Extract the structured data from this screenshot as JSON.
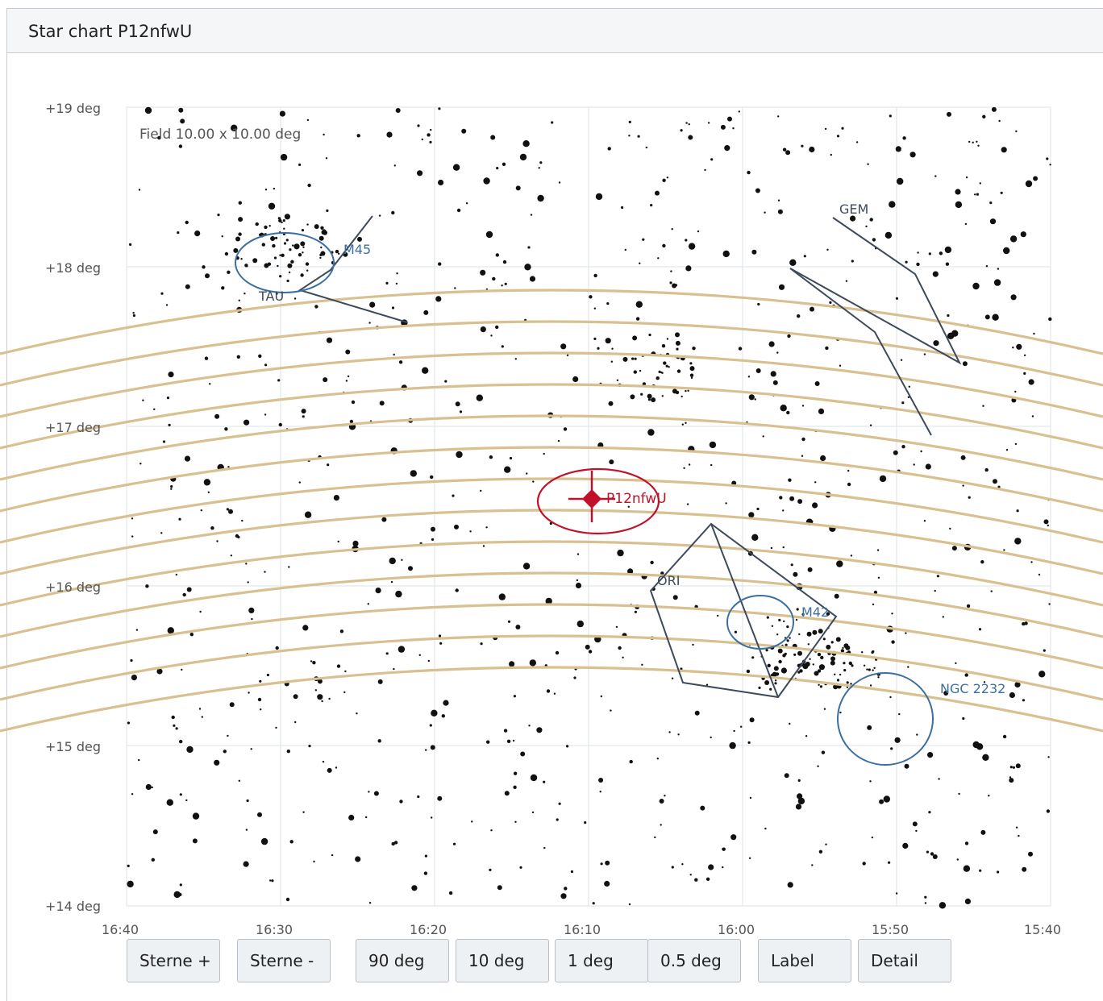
{
  "window": {
    "title": "Star chart P12nfwU"
  },
  "chart": {
    "field_label": "Field 10.00 x 10.00 deg",
    "y_ticks": [
      "+19 deg",
      "+18 deg",
      "+17 deg",
      "+16 deg",
      "+15 deg",
      "+14 deg"
    ],
    "x_ticks": [
      "16:40",
      "16:30",
      "16:20",
      "16:10",
      "16:00",
      "15:50",
      "15:40"
    ],
    "target_label": "P12nfwU",
    "cluster_labels": [
      "M45",
      "M42",
      "NGC 2232"
    ],
    "constellation_labels": [
      "TAU",
      "GEM",
      "ORI"
    ],
    "colors": {
      "grid": "#dde3ea",
      "axis_text": "#555555",
      "star": "#111111",
      "track": "#d9c090",
      "target": "#c0102a",
      "cluster": "#3a6fa0",
      "constellation": "#3d4a5c"
    }
  },
  "buttons": {
    "stars_plus": "Sterne +",
    "stars_minus": "Sterne -",
    "zoom_90": "90 deg",
    "zoom_10": "10 deg",
    "zoom_1": "1 deg",
    "zoom_05": "0.5 deg",
    "label": "Label",
    "detail": "Detail"
  }
}
